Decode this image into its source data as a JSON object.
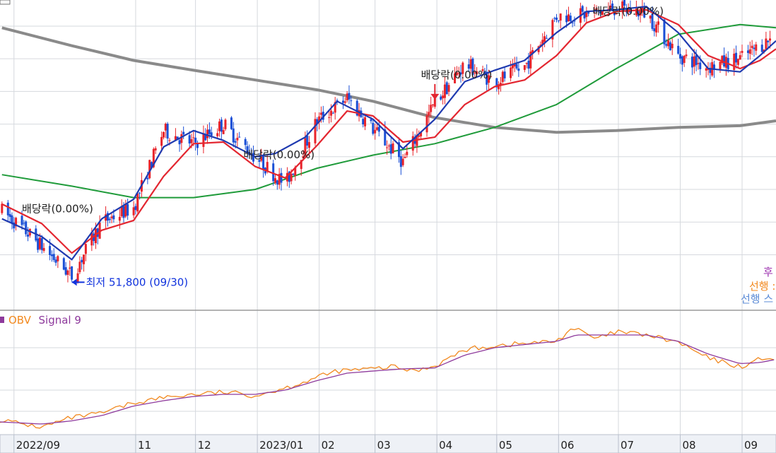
{
  "chart_data": [
    {
      "type": "candlestick",
      "panel": "price",
      "up_color": "#e8232a",
      "down_color": "#1a4fd6",
      "grid": true,
      "x_axis": {
        "type": "date",
        "tick_labels": [
          "2022/09",
          "11",
          "12",
          "2023/01",
          "02",
          "03",
          "04",
          "05",
          "06",
          "07",
          "08",
          "09"
        ],
        "tick_dates": [
          "2022-09-01",
          "2022-11-01",
          "2022-12-01",
          "2023-01-01",
          "2023-02-01",
          "2023-03-01",
          "2023-04-01",
          "2023-05-01",
          "2023-06-01",
          "2023-07-01",
          "2023-08-01",
          "2023-09-01"
        ],
        "range": [
          "2022-08-25",
          "2023-09-18"
        ]
      },
      "y_axis": {
        "range": [
          50900,
          60400
        ],
        "gridlines": [
          52600,
          53600,
          54600,
          55600,
          56600,
          57600,
          58600,
          59600
        ]
      },
      "ohlc_key": [
        [
          "2022-08-26",
          53950
        ],
        [
          "2022-09-10",
          53150
        ],
        [
          "2022-09-30",
          51950
        ],
        [
          "2022-10-15",
          53600
        ],
        [
          "2022-10-31",
          54050
        ],
        [
          "2022-11-15",
          56400
        ],
        [
          "2022-11-30",
          56000
        ],
        [
          "2022-12-15",
          56600
        ],
        [
          "2022-12-30",
          55650
        ],
        [
          "2023-01-15",
          54750
        ],
        [
          "2023-01-31",
          56700
        ],
        [
          "2023-02-15",
          57400
        ],
        [
          "2023-02-28",
          56450
        ],
        [
          "2023-03-15",
          55450
        ],
        [
          "2023-03-31",
          57250
        ],
        [
          "2023-04-15",
          58450
        ],
        [
          "2023-04-30",
          57900
        ],
        [
          "2023-05-15",
          58350
        ],
        [
          "2023-05-31",
          59900
        ],
        [
          "2023-06-15",
          59950
        ],
        [
          "2023-06-30",
          60150
        ],
        [
          "2023-07-15",
          60000
        ],
        [
          "2023-07-31",
          58700
        ],
        [
          "2023-08-15",
          58350
        ],
        [
          "2023-08-31",
          58600
        ],
        [
          "2023-09-15",
          59200
        ]
      ],
      "moving_averages": [
        {
          "color": "#1f3ab0",
          "points": [
            [
              "2022-08-26",
              53700
            ],
            [
              "2022-09-15",
              53150
            ],
            [
              "2022-09-30",
              52450
            ],
            [
              "2022-10-15",
              53700
            ],
            [
              "2022-10-31",
              54300
            ],
            [
              "2022-11-15",
              55900
            ],
            [
              "2022-11-30",
              56400
            ],
            [
              "2022-12-15",
              56100
            ],
            [
              "2022-12-31",
              55600
            ],
            [
              "2023-01-10",
              55700
            ],
            [
              "2023-01-25",
              56200
            ],
            [
              "2023-02-10",
              57300
            ],
            [
              "2023-02-28",
              56750
            ],
            [
              "2023-03-15",
              55850
            ],
            [
              "2023-03-31",
              56750
            ],
            [
              "2023-04-15",
              57900
            ],
            [
              "2023-04-30",
              58250
            ],
            [
              "2023-05-15",
              58550
            ],
            [
              "2023-05-31",
              59400
            ],
            [
              "2023-06-15",
              60050
            ],
            [
              "2023-06-30",
              60100
            ],
            [
              "2023-07-15",
              60200
            ],
            [
              "2023-07-31",
              59400
            ],
            [
              "2023-08-15",
              58300
            ],
            [
              "2023-08-31",
              58200
            ],
            [
              "2023-09-10",
              58700
            ],
            [
              "2023-09-18",
              59150
            ]
          ]
        },
        {
          "color": "#e32630",
          "points": [
            [
              "2022-08-26",
              54150
            ],
            [
              "2022-09-15",
              53550
            ],
            [
              "2022-09-30",
              52650
            ],
            [
              "2022-10-15",
              53350
            ],
            [
              "2022-10-31",
              53650
            ],
            [
              "2022-11-15",
              55000
            ],
            [
              "2022-11-30",
              56000
            ],
            [
              "2022-12-15",
              56050
            ],
            [
              "2022-12-31",
              55300
            ],
            [
              "2023-01-15",
              54950
            ],
            [
              "2023-01-31",
              55950
            ],
            [
              "2023-02-15",
              57000
            ],
            [
              "2023-02-28",
              56850
            ],
            [
              "2023-03-15",
              56050
            ],
            [
              "2023-03-31",
              56200
            ],
            [
              "2023-04-15",
              57200
            ],
            [
              "2023-04-30",
              57750
            ],
            [
              "2023-05-15",
              57950
            ],
            [
              "2023-05-31",
              58700
            ],
            [
              "2023-06-15",
              59700
            ],
            [
              "2023-06-30",
              60050
            ],
            [
              "2023-07-15",
              60100
            ],
            [
              "2023-07-31",
              59650
            ],
            [
              "2023-08-15",
              58700
            ],
            [
              "2023-08-31",
              58300
            ],
            [
              "2023-09-10",
              58550
            ],
            [
              "2023-09-18",
              58900
            ]
          ]
        },
        {
          "color": "#1f9b3a",
          "points": [
            [
              "2022-08-26",
              55050
            ],
            [
              "2022-09-30",
              54700
            ],
            [
              "2022-10-31",
              54350
            ],
            [
              "2022-11-30",
              54350
            ],
            [
              "2022-12-31",
              54600
            ],
            [
              "2023-01-31",
              55250
            ],
            [
              "2023-02-28",
              55650
            ],
            [
              "2023-03-31",
              56000
            ],
            [
              "2023-04-30",
              56500
            ],
            [
              "2023-05-31",
              57200
            ],
            [
              "2023-06-30",
              58300
            ],
            [
              "2023-07-31",
              59350
            ],
            [
              "2023-08-31",
              59650
            ],
            [
              "2023-09-18",
              59550
            ]
          ]
        },
        {
          "color": "#8a8a8a",
          "points": [
            [
              "2022-08-26",
              59550
            ],
            [
              "2022-09-30",
              59000
            ],
            [
              "2022-10-31",
              58550
            ],
            [
              "2022-11-30",
              58250
            ],
            [
              "2022-12-31",
              57950
            ],
            [
              "2023-01-31",
              57650
            ],
            [
              "2023-02-28",
              57300
            ],
            [
              "2023-03-31",
              56800
            ],
            [
              "2023-04-30",
              56500
            ],
            [
              "2023-05-31",
              56350
            ],
            [
              "2023-06-30",
              56400
            ],
            [
              "2023-07-31",
              56500
            ],
            [
              "2023-08-31",
              56550
            ],
            [
              "2023-09-18",
              56700
            ]
          ]
        }
      ],
      "annotations": [
        {
          "text": "배당락(0.00%)",
          "date": "2022-09-05",
          "value": 53900,
          "color": "#222222"
        },
        {
          "text": "배당락(0.00%)",
          "date": "2022-12-25",
          "value": 55550,
          "color": "#222222"
        },
        {
          "text": "배당락(0.00%)",
          "date": "2023-03-24",
          "value": 58000,
          "color": "#222222"
        },
        {
          "text": "배당락(0.00%)",
          "date": "2023-06-18",
          "value": 59950,
          "color": "#222222"
        }
      ],
      "dividend_arrow": {
        "date": "2023-03-31",
        "color": "#e32630"
      },
      "low_marker": {
        "label": "최저",
        "value_text": "51,800",
        "date_text": "(09/30)",
        "color": "#1133dd"
      },
      "right_legend": [
        {
          "text": "후",
          "color": "#9b2fae"
        },
        {
          "text": "선행 :",
          "color": "#f2891f"
        },
        {
          "text": "선행 스",
          "color": "#5b8bd6"
        }
      ]
    },
    {
      "type": "line",
      "panel": "indicator",
      "grid": true,
      "legend": [
        {
          "name": "OBV",
          "color": "#f2891f"
        },
        {
          "name": "Signal 9",
          "color": "#8e3a9c"
        }
      ],
      "y_axis": {
        "range": [
          0,
          100
        ]
      },
      "series": [
        {
          "name": "OBV",
          "color": "#f2891f",
          "points": [
            [
              "2022-08-25",
              12
            ],
            [
              "2022-09-05",
              8
            ],
            [
              "2022-09-15",
              5
            ],
            [
              "2022-09-30",
              14
            ],
            [
              "2022-10-15",
              18
            ],
            [
              "2022-10-31",
              28
            ],
            [
              "2022-11-15",
              33
            ],
            [
              "2022-11-30",
              36
            ],
            [
              "2022-12-15",
              38
            ],
            [
              "2022-12-31",
              35
            ],
            [
              "2023-01-15",
              42
            ],
            [
              "2023-01-31",
              52
            ],
            [
              "2023-02-10",
              58
            ],
            [
              "2023-02-28",
              60
            ],
            [
              "2023-03-10",
              62
            ],
            [
              "2023-03-20",
              58
            ],
            [
              "2023-03-31",
              63
            ],
            [
              "2023-04-15",
              78
            ],
            [
              "2023-04-30",
              82
            ],
            [
              "2023-05-15",
              84
            ],
            [
              "2023-05-31",
              86
            ],
            [
              "2023-06-08",
              99
            ],
            [
              "2023-06-20",
              88
            ],
            [
              "2023-06-30",
              95
            ],
            [
              "2023-07-15",
              92
            ],
            [
              "2023-07-31",
              85
            ],
            [
              "2023-08-15",
              70
            ],
            [
              "2023-08-31",
              62
            ],
            [
              "2023-09-05",
              65
            ],
            [
              "2023-09-12",
              71
            ],
            [
              "2023-09-18",
              69
            ]
          ]
        },
        {
          "name": "Signal 9",
          "color": "#8e3a9c",
          "points": [
            [
              "2022-08-25",
              10
            ],
            [
              "2022-09-15",
              8
            ],
            [
              "2022-09-30",
              11
            ],
            [
              "2022-10-15",
              16
            ],
            [
              "2022-10-31",
              25
            ],
            [
              "2022-11-15",
              30
            ],
            [
              "2022-11-30",
              34
            ],
            [
              "2022-12-15",
              36
            ],
            [
              "2022-12-31",
              36
            ],
            [
              "2023-01-15",
              40
            ],
            [
              "2023-01-31",
              49
            ],
            [
              "2023-02-15",
              56
            ],
            [
              "2023-02-28",
              58
            ],
            [
              "2023-03-15",
              60
            ],
            [
              "2023-03-31",
              61
            ],
            [
              "2023-04-15",
              73
            ],
            [
              "2023-04-30",
              80
            ],
            [
              "2023-05-15",
              83
            ],
            [
              "2023-05-31",
              86
            ],
            [
              "2023-06-10",
              92
            ],
            [
              "2023-06-30",
              92
            ],
            [
              "2023-07-15",
              92
            ],
            [
              "2023-07-31",
              86
            ],
            [
              "2023-08-15",
              74
            ],
            [
              "2023-08-31",
              65
            ],
            [
              "2023-09-10",
              66
            ],
            [
              "2023-09-18",
              69
            ]
          ]
        }
      ]
    }
  ]
}
